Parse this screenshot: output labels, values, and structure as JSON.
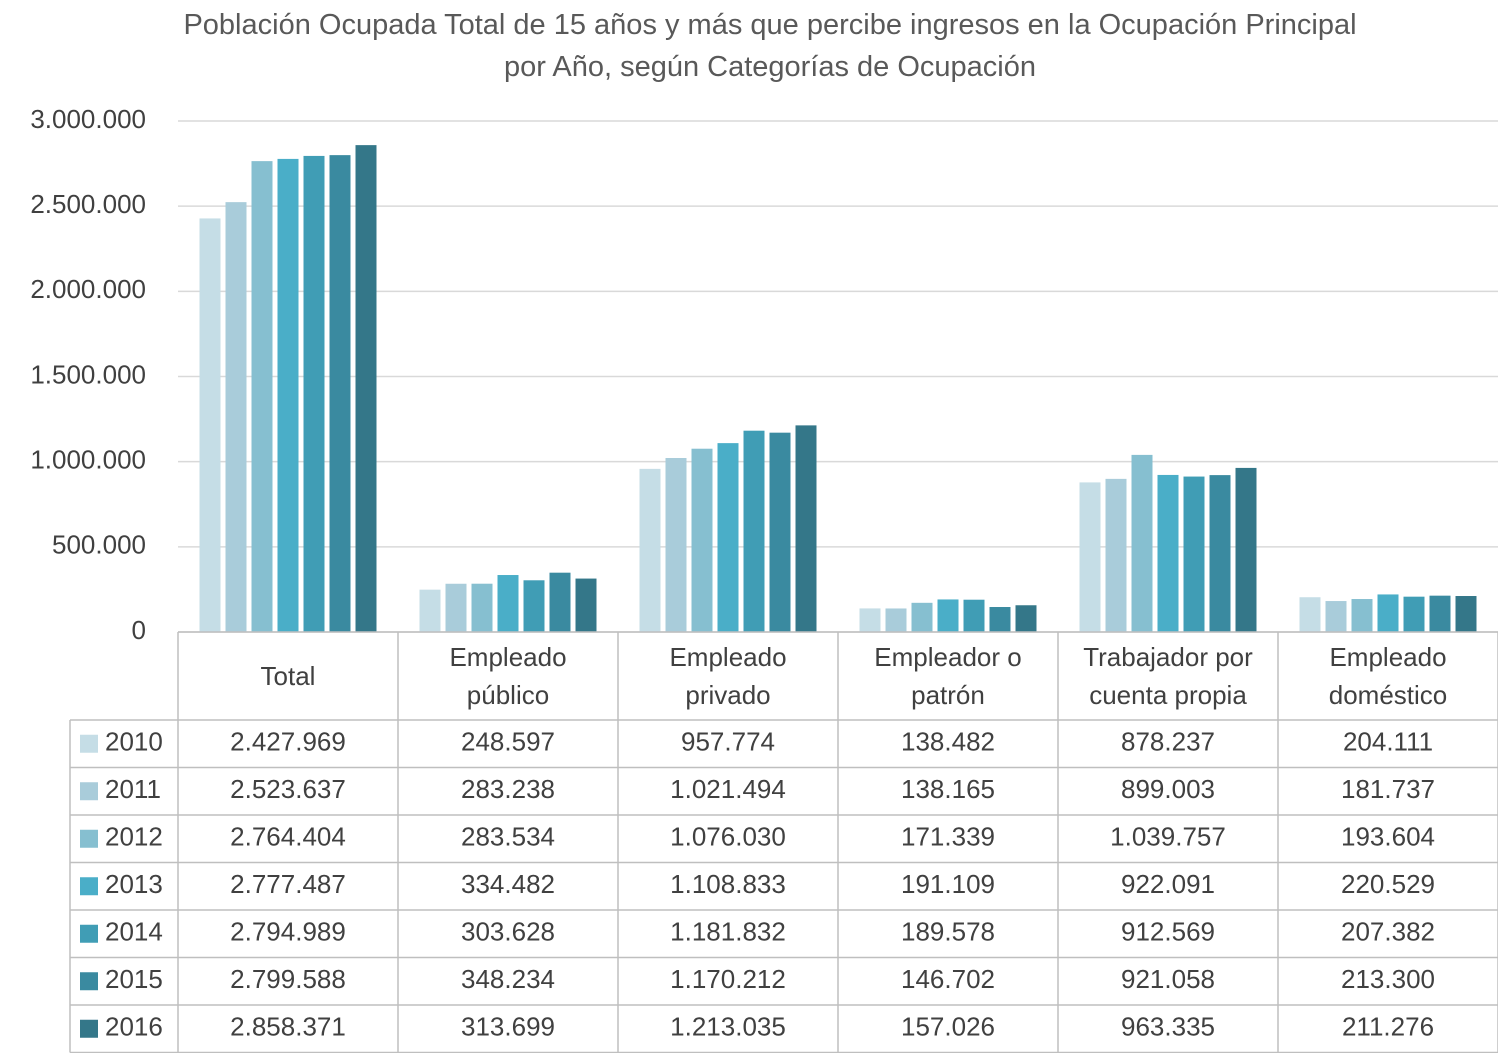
{
  "chart_data": {
    "type": "bar",
    "title": "Población Ocupada Total de 15 años y más que percibe ingresos en la Ocupación Principal por Año, según Categorías de Ocupación",
    "categories": [
      "Total",
      "Empleado público",
      "Empleado privado",
      "Empleador o patrón",
      "Trabajador por cuenta propia",
      "Empleado doméstico"
    ],
    "ylim": [
      0,
      3000000
    ],
    "yticks": [
      0,
      {
        "value": 500000,
        "label": "500.000"
      },
      {
        "value": 1000000,
        "label": "1.000.000"
      },
      {
        "value": 1500000,
        "label": "1.500.000"
      },
      {
        "value": 2000000,
        "label": "2.000.000"
      },
      {
        "value": 2500000,
        "label": "2.500.000"
      },
      {
        "value": 3000000,
        "label": "3.000.000"
      }
    ],
    "grid": true,
    "series": [
      {
        "name": "2010",
        "color": "#c5dde6",
        "values": [
          2427969,
          248597,
          957774,
          138482,
          878237,
          204111
        ],
        "value_labels": [
          "2.427.969",
          "248.597",
          "957.774",
          "138.482",
          "878.237",
          "204.111"
        ]
      },
      {
        "name": "2011",
        "color": "#a9ccda",
        "values": [
          2523637,
          283238,
          1021494,
          138165,
          899003,
          181737
        ],
        "value_labels": [
          "2.523.637",
          "283.238",
          "1.021.494",
          "138.165",
          "899.003",
          "181.737"
        ]
      },
      {
        "name": "2012",
        "color": "#86bfd0",
        "values": [
          2764404,
          283534,
          1076030,
          171339,
          1039757,
          193604
        ],
        "value_labels": [
          "2.764.404",
          "283.534",
          "1.076.030",
          "171.339",
          "1.039.757",
          "193.604"
        ]
      },
      {
        "name": "2013",
        "color": "#4aaec8",
        "values": [
          2777487,
          334482,
          1108833,
          191109,
          922091,
          220529
        ],
        "value_labels": [
          "2.777.487",
          "334.482",
          "1.108.833",
          "191.109",
          "922.091",
          "220.529"
        ]
      },
      {
        "name": "2014",
        "color": "#409db5",
        "values": [
          2794989,
          303628,
          1181832,
          189578,
          912569,
          207382
        ],
        "value_labels": [
          "2.794.989",
          "303.628",
          "1.181.832",
          "189.578",
          "912.569",
          "207.382"
        ]
      },
      {
        "name": "2015",
        "color": "#3a8aa0",
        "values": [
          2799588,
          348234,
          1170212,
          146702,
          921058,
          213300
        ],
        "value_labels": [
          "2.799.588",
          "348.234",
          "1.170.212",
          "146.702",
          "921.058",
          "213.300"
        ]
      },
      {
        "name": "2016",
        "color": "#347789",
        "values": [
          2858371,
          313699,
          1213035,
          157026,
          963335,
          211276
        ],
        "value_labels": [
          "2.858.371",
          "313.699",
          "1.213.035",
          "157.026",
          "963.335",
          "211.276"
        ]
      }
    ]
  }
}
